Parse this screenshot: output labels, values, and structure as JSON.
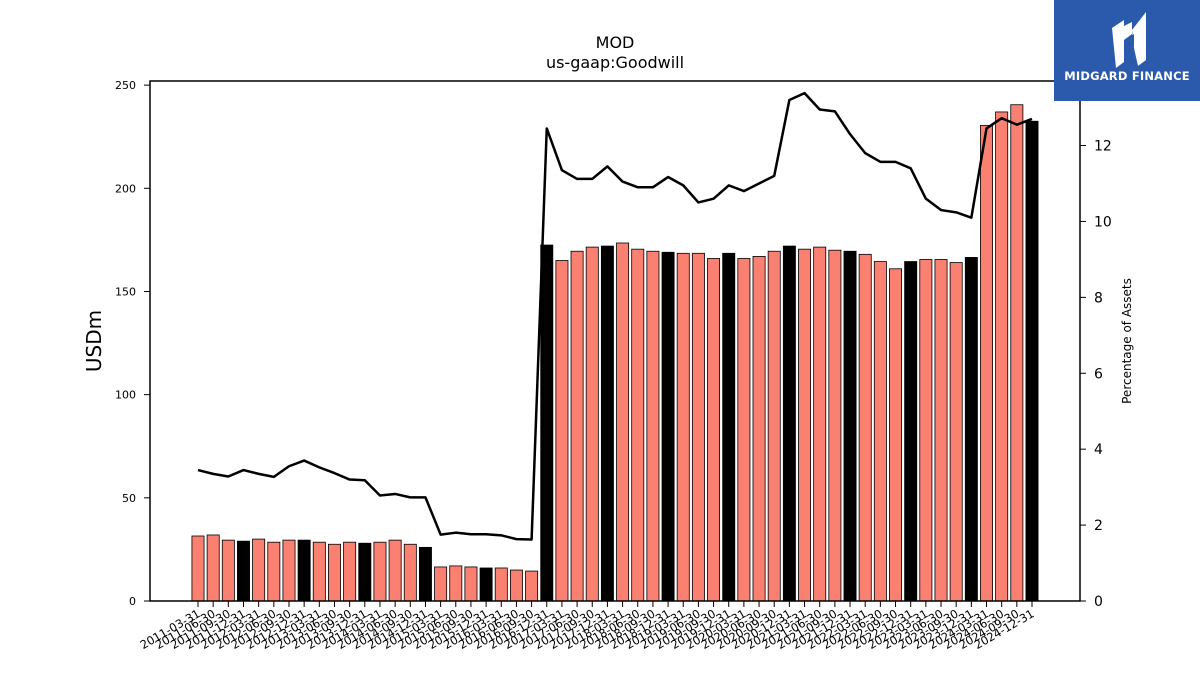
{
  "logo": {
    "text": "MIDGARD FINANCE",
    "bg_color": "#2b5aad"
  },
  "chart_data": {
    "type": "bar",
    "title": "MOD",
    "subtitle": "us-gaap:Goodwill",
    "ylabel": "USDm",
    "y2label": "Percentage of Assets",
    "ylim": [
      0,
      252
    ],
    "y2lim": [
      0,
      13.7
    ],
    "yticks": [
      0,
      50,
      100,
      150,
      200,
      250
    ],
    "y2ticks": [
      0,
      2,
      4,
      6,
      8,
      10,
      12
    ],
    "categories": [
      "2011-03-31",
      "2011-06-30",
      "2011-09-30",
      "2011-12-31",
      "2012-03-31",
      "2012-06-30",
      "2012-09-30",
      "2012-12-31",
      "2013-03-31",
      "2013-06-30",
      "2013-09-30",
      "2013-12-31",
      "2014-03-31",
      "2014-06-30",
      "2014-09-30",
      "2014-12-31",
      "2015-03-31",
      "2015-06-30",
      "2015-09-30",
      "2015-12-31",
      "2016-03-31",
      "2016-06-30",
      "2016-09-30",
      "2016-12-31",
      "2017-03-31",
      "2017-06-30",
      "2017-09-30",
      "2017-12-31",
      "2018-03-31",
      "2018-06-30",
      "2018-09-30",
      "2018-12-31",
      "2019-03-31",
      "2019-06-30",
      "2019-09-30",
      "2019-12-31",
      "2020-03-31",
      "2020-06-30",
      "2020-09-30",
      "2020-12-31",
      "2021-03-31",
      "2021-06-30",
      "2021-09-30",
      "2021-12-31",
      "2022-03-31",
      "2022-06-30",
      "2022-09-30",
      "2022-12-31",
      "2023-03-31",
      "2023-06-30",
      "2023-09-30",
      "2023-12-31",
      "2024-03-31",
      "2024-06-30",
      "2024-09-30",
      "2024-12-31"
    ],
    "series": [
      {
        "kind": "bar",
        "axis": "left",
        "values": [
          31.5,
          32,
          29.5,
          29,
          30,
          28.5,
          29.5,
          29.5,
          28.5,
          27.5,
          28.5,
          28,
          28.5,
          29.5,
          27.5,
          26,
          16.5,
          17,
          16.5,
          16,
          16,
          15,
          14.5,
          172.5,
          165,
          169.5,
          171.5,
          172,
          173.5,
          170.5,
          169.5,
          169,
          168.5,
          168.5,
          166,
          168.5,
          166,
          167,
          169.5,
          172,
          170.5,
          171.5,
          170,
          169.5,
          168,
          164.5,
          161,
          164.5,
          165.5,
          165.5,
          164,
          166.5,
          230.5,
          237,
          240.5,
          232.5
        ],
        "colors_by_index": {
          "default": "#fa8072",
          "highlight": "#000000",
          "highlight_indices": [
            3,
            7,
            11,
            15,
            19,
            23,
            27,
            31,
            35,
            39,
            43,
            47,
            51,
            55
          ]
        }
      },
      {
        "kind": "line",
        "axis": "right",
        "color": "#000000",
        "values": [
          3.45,
          3.35,
          3.28,
          3.45,
          3.35,
          3.27,
          3.55,
          3.7,
          3.52,
          3.37,
          3.2,
          3.18,
          2.78,
          2.82,
          2.73,
          2.73,
          1.75,
          1.8,
          1.76,
          1.76,
          1.73,
          1.63,
          1.62,
          12.45,
          11.35,
          11.12,
          11.12,
          11.45,
          11.05,
          10.9,
          10.9,
          11.17,
          10.95,
          10.5,
          10.6,
          10.95,
          10.8,
          11.0,
          11.2,
          13.2,
          13.38,
          12.95,
          12.9,
          12.3,
          11.8,
          11.57,
          11.57,
          11.4,
          10.6,
          10.3,
          10.24,
          10.1,
          12.45,
          12.72,
          12.55,
          12.7
        ]
      }
    ]
  }
}
